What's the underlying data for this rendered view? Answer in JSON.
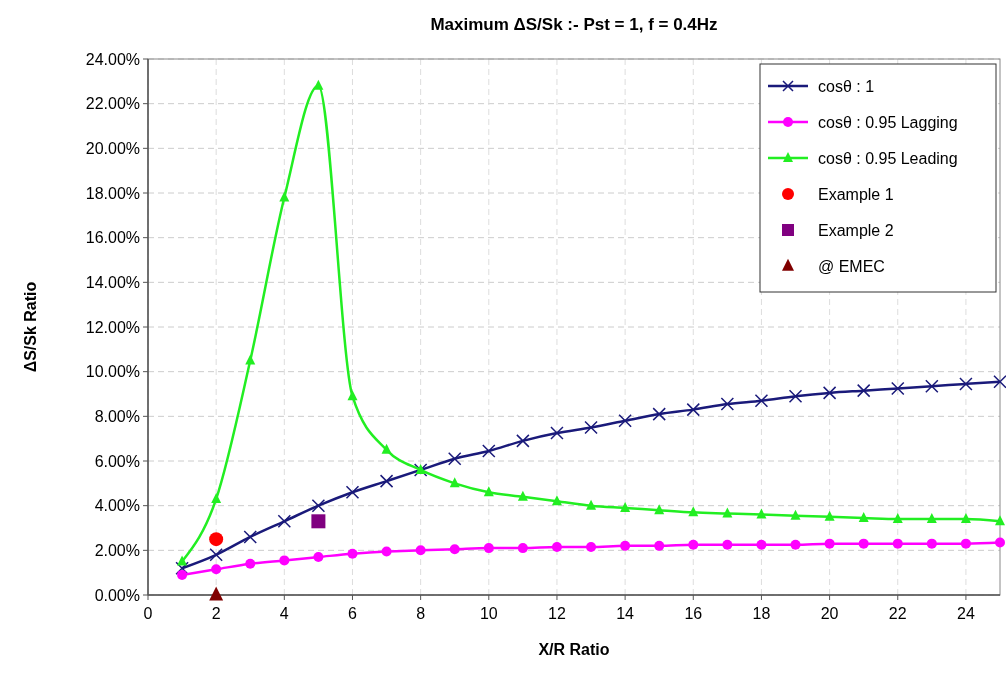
{
  "chart_data": {
    "type": "line",
    "title": "Maximum ΔS/Sk :- Pst = 1, f = 0.4Hz",
    "xlabel": "X/R Ratio",
    "ylabel": "ΔS/Sk Ratio",
    "xlim": [
      0,
      25
    ],
    "xticks": [
      0,
      2,
      4,
      6,
      8,
      10,
      12,
      14,
      16,
      18,
      20,
      22,
      24
    ],
    "ylim": [
      0,
      24
    ],
    "yticks": [
      {
        "value": 0,
        "label": "0.00%"
      },
      {
        "value": 2,
        "label": "2.00%"
      },
      {
        "value": 4,
        "label": "4.00%"
      },
      {
        "value": 6,
        "label": "6.00%"
      },
      {
        "value": 8,
        "label": "8.00%"
      },
      {
        "value": 10,
        "label": "10.00%"
      },
      {
        "value": 12,
        "label": "12.00%"
      },
      {
        "value": 14,
        "label": "14.00%"
      },
      {
        "value": 16,
        "label": "16.00%"
      },
      {
        "value": 18,
        "label": "18.00%"
      },
      {
        "value": 20,
        "label": "20.00%"
      },
      {
        "value": 22,
        "label": "22.00%"
      },
      {
        "value": 24,
        "label": "24.00%"
      }
    ],
    "grid": true,
    "legend": "top right",
    "series": [
      {
        "name": "cosθ : 1",
        "color": "#1a1a7a",
        "marker": "cross",
        "x": [
          1,
          2,
          3,
          4,
          5,
          6,
          7,
          8,
          9,
          10,
          11,
          12,
          13,
          14,
          15,
          16,
          17,
          18,
          19,
          20,
          21,
          22,
          23,
          24,
          25
        ],
        "values": [
          1.2,
          1.8,
          2.6,
          3.3,
          4.0,
          4.6,
          5.1,
          5.6,
          6.1,
          6.45,
          6.9,
          7.25,
          7.5,
          7.8,
          8.1,
          8.3,
          8.55,
          8.7,
          8.9,
          9.05,
          9.15,
          9.25,
          9.35,
          9.45,
          9.55
        ]
      },
      {
        "name": "cosθ : 0.95 Lagging",
        "color": "#ff00ff",
        "marker": "circle",
        "x": [
          1,
          2,
          3,
          4,
          5,
          6,
          7,
          8,
          9,
          10,
          11,
          12,
          13,
          14,
          15,
          16,
          17,
          18,
          19,
          20,
          21,
          22,
          23,
          24,
          25
        ],
        "values": [
          0.9,
          1.15,
          1.4,
          1.55,
          1.7,
          1.85,
          1.95,
          2.0,
          2.05,
          2.1,
          2.1,
          2.15,
          2.15,
          2.2,
          2.2,
          2.25,
          2.25,
          2.25,
          2.25,
          2.3,
          2.3,
          2.3,
          2.3,
          2.3,
          2.35
        ]
      },
      {
        "name": "cosθ : 0.95 Leading",
        "color": "#22ee22",
        "marker": "triangle",
        "x": [
          1,
          2,
          3,
          4,
          5,
          6,
          7,
          8,
          9,
          10,
          11,
          12,
          13,
          14,
          15,
          16,
          17,
          18,
          19,
          20,
          21,
          22,
          23,
          24,
          25
        ],
        "values": [
          1.5,
          4.3,
          10.5,
          17.8,
          22.8,
          8.9,
          6.5,
          5.6,
          5.0,
          4.6,
          4.4,
          4.2,
          4.0,
          3.9,
          3.8,
          3.7,
          3.65,
          3.6,
          3.55,
          3.5,
          3.45,
          3.4,
          3.4,
          3.4,
          3.3
        ]
      },
      {
        "name": "Example 1",
        "type": "scatter",
        "color": "#ff0000",
        "marker": "circle",
        "x": [
          2
        ],
        "values": [
          2.5
        ]
      },
      {
        "name": "Example 2",
        "type": "scatter",
        "color": "#800080",
        "marker": "square",
        "x": [
          5
        ],
        "values": [
          3.3
        ]
      },
      {
        "name": "@ EMEC",
        "type": "scatter",
        "color": "#800000",
        "marker": "triangle",
        "x": [
          2
        ],
        "values": [
          0
        ]
      }
    ]
  }
}
